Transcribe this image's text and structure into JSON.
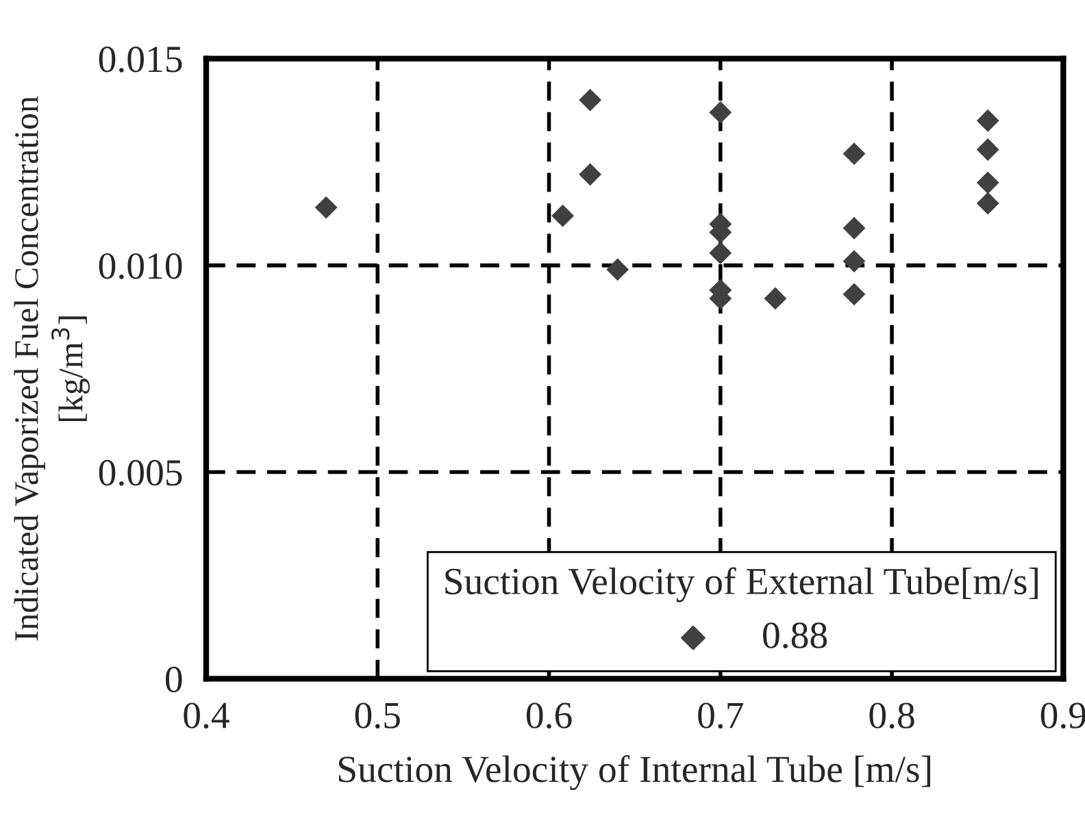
{
  "chart_data": {
    "type": "scatter",
    "xlabel": "Suction Velocity of Internal Tube [m/s]",
    "ylabel": "Indicated Vaporized Fuel Concentration\n[kg/m$^{3}$]",
    "legend_title": "Suction Velocity of External Tube[m/s]",
    "series": [
      {
        "name": "0.88",
        "color": "#404040",
        "x": [
          0.47,
          0.624,
          0.624,
          0.608,
          0.64,
          0.7,
          0.7,
          0.7,
          0.7,
          0.7,
          0.7,
          0.732,
          0.778,
          0.778,
          0.778,
          0.778,
          0.856,
          0.856,
          0.856,
          0.856
        ],
        "values": [
          0.0114,
          0.014,
          0.0122,
          0.0112,
          0.0099,
          0.0137,
          0.011,
          0.0108,
          0.0103,
          0.0094,
          0.0092,
          0.0092,
          0.0127,
          0.0109,
          0.0101,
          0.0093,
          0.0135,
          0.0128,
          0.012,
          0.0115
        ]
      }
    ],
    "xlim": [
      0.4,
      0.9
    ],
    "xticks": [
      0.4,
      0.5,
      0.6,
      0.7,
      0.8,
      0.9
    ],
    "ylim": [
      0,
      0.015
    ],
    "yticks": [
      {
        "value": 0,
        "label": "0"
      },
      {
        "value": 0.005,
        "label": "0.005"
      },
      {
        "value": 0.01,
        "label": "0.010"
      },
      {
        "value": 0.015,
        "label": "0.015"
      }
    ],
    "grid": true,
    "legend": "bottom right",
    "marker": "diamond"
  }
}
